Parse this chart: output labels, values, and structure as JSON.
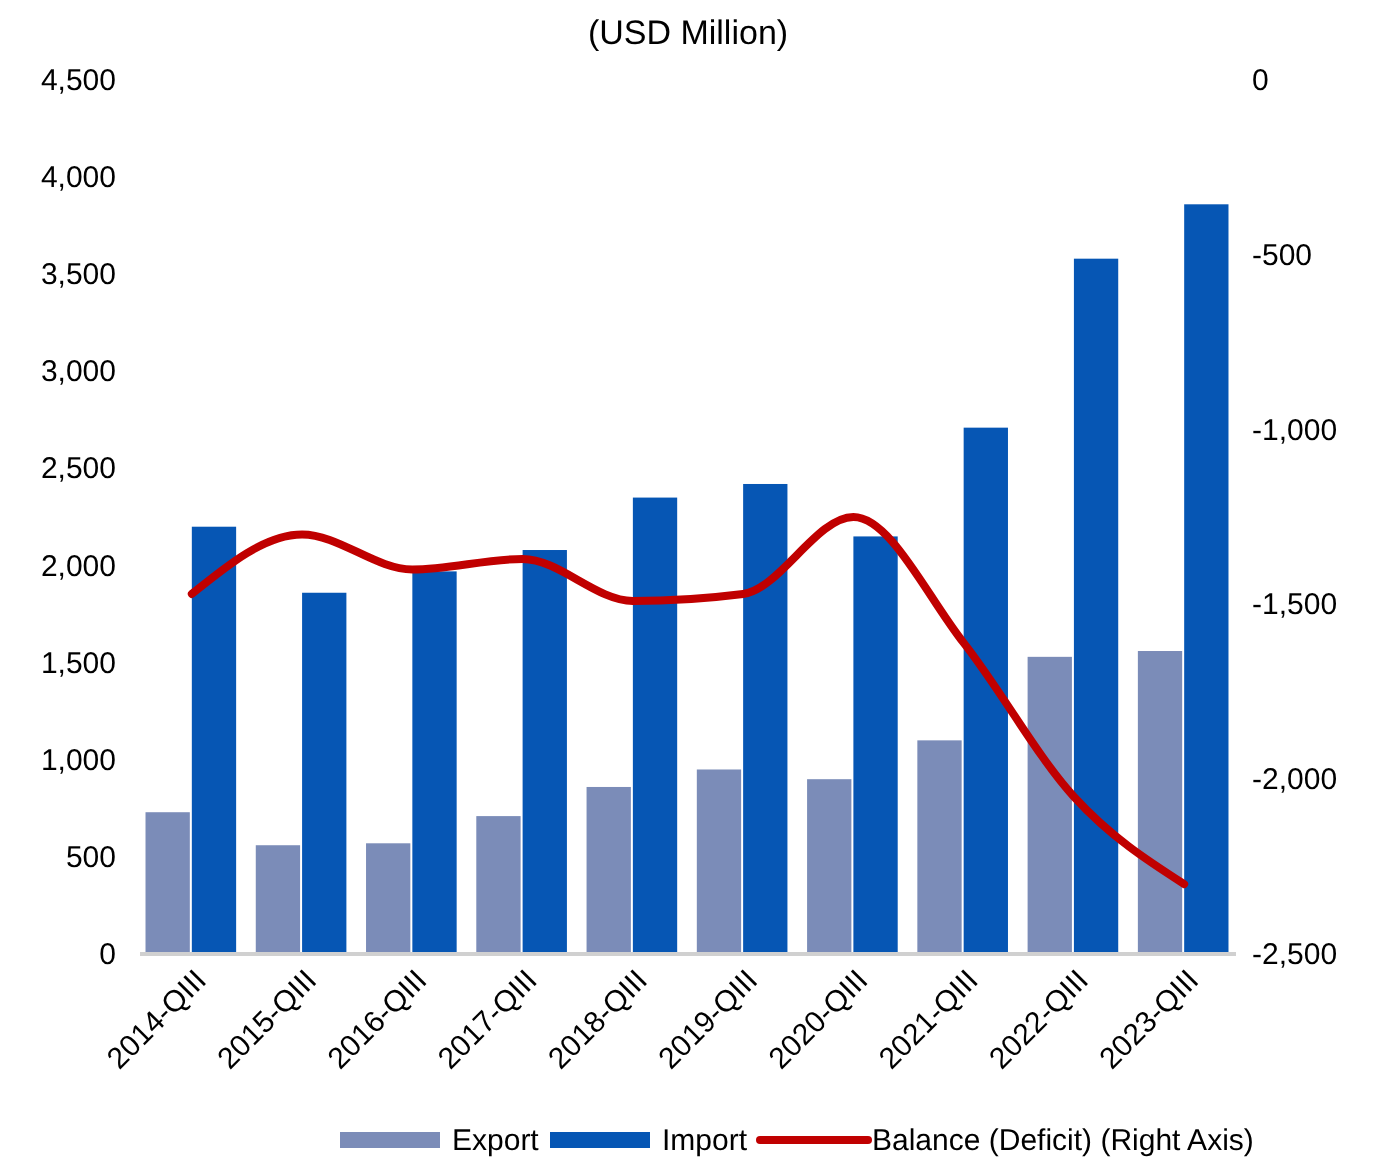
{
  "chart_data": {
    "type": "bar",
    "title": "(USD Million)",
    "categories": [
      "2014-QIII",
      "2015-QIII",
      "2016-QIII",
      "2017-QIII",
      "2018-QIII",
      "2019-QIII",
      "2020-QIII",
      "2021-QIII",
      "2022-QIII",
      "2023-QIII"
    ],
    "series": [
      {
        "name": "Export",
        "color": "#7b8cb8",
        "values": [
          730,
          560,
          570,
          710,
          860,
          950,
          900,
          1100,
          1530,
          1560
        ]
      },
      {
        "name": "Import",
        "color": "#0656b4",
        "values": [
          2200,
          1860,
          1970,
          2080,
          2350,
          2420,
          2150,
          2710,
          3580,
          3860
        ]
      },
      {
        "name": "Balance (Deficit) (Right Axis)",
        "type": "line",
        "axis": "y2",
        "color": "#c00000",
        "values": [
          -1470,
          -1300,
          -1400,
          -1370,
          -1490,
          -1470,
          -1250,
          -1610,
          -2050,
          -2300
        ]
      }
    ],
    "ylim": [
      0,
      4500
    ],
    "yticks": [
      {
        "value": 0,
        "label": "0"
      },
      {
        "value": 500,
        "label": "500"
      },
      {
        "value": 1000,
        "label": "1,000"
      },
      {
        "value": 1500,
        "label": "1,500"
      },
      {
        "value": 2000,
        "label": "2,000"
      },
      {
        "value": 2500,
        "label": "2,500"
      },
      {
        "value": 3000,
        "label": "3,000"
      },
      {
        "value": 3500,
        "label": "3,500"
      },
      {
        "value": 4000,
        "label": "4,000"
      },
      {
        "value": 4500,
        "label": "4,500"
      }
    ],
    "y2lim": [
      -2500,
      0
    ],
    "y2ticks": [
      {
        "value": -2500,
        "label": "-2,500"
      },
      {
        "value": -2000,
        "label": "-2,000"
      },
      {
        "value": -1500,
        "label": "-1,500"
      },
      {
        "value": -1000,
        "label": "-1,000"
      },
      {
        "value": -500,
        "label": "-500"
      },
      {
        "value": 0,
        "label": "0"
      }
    ],
    "grid": false,
    "legend": "bottom"
  }
}
